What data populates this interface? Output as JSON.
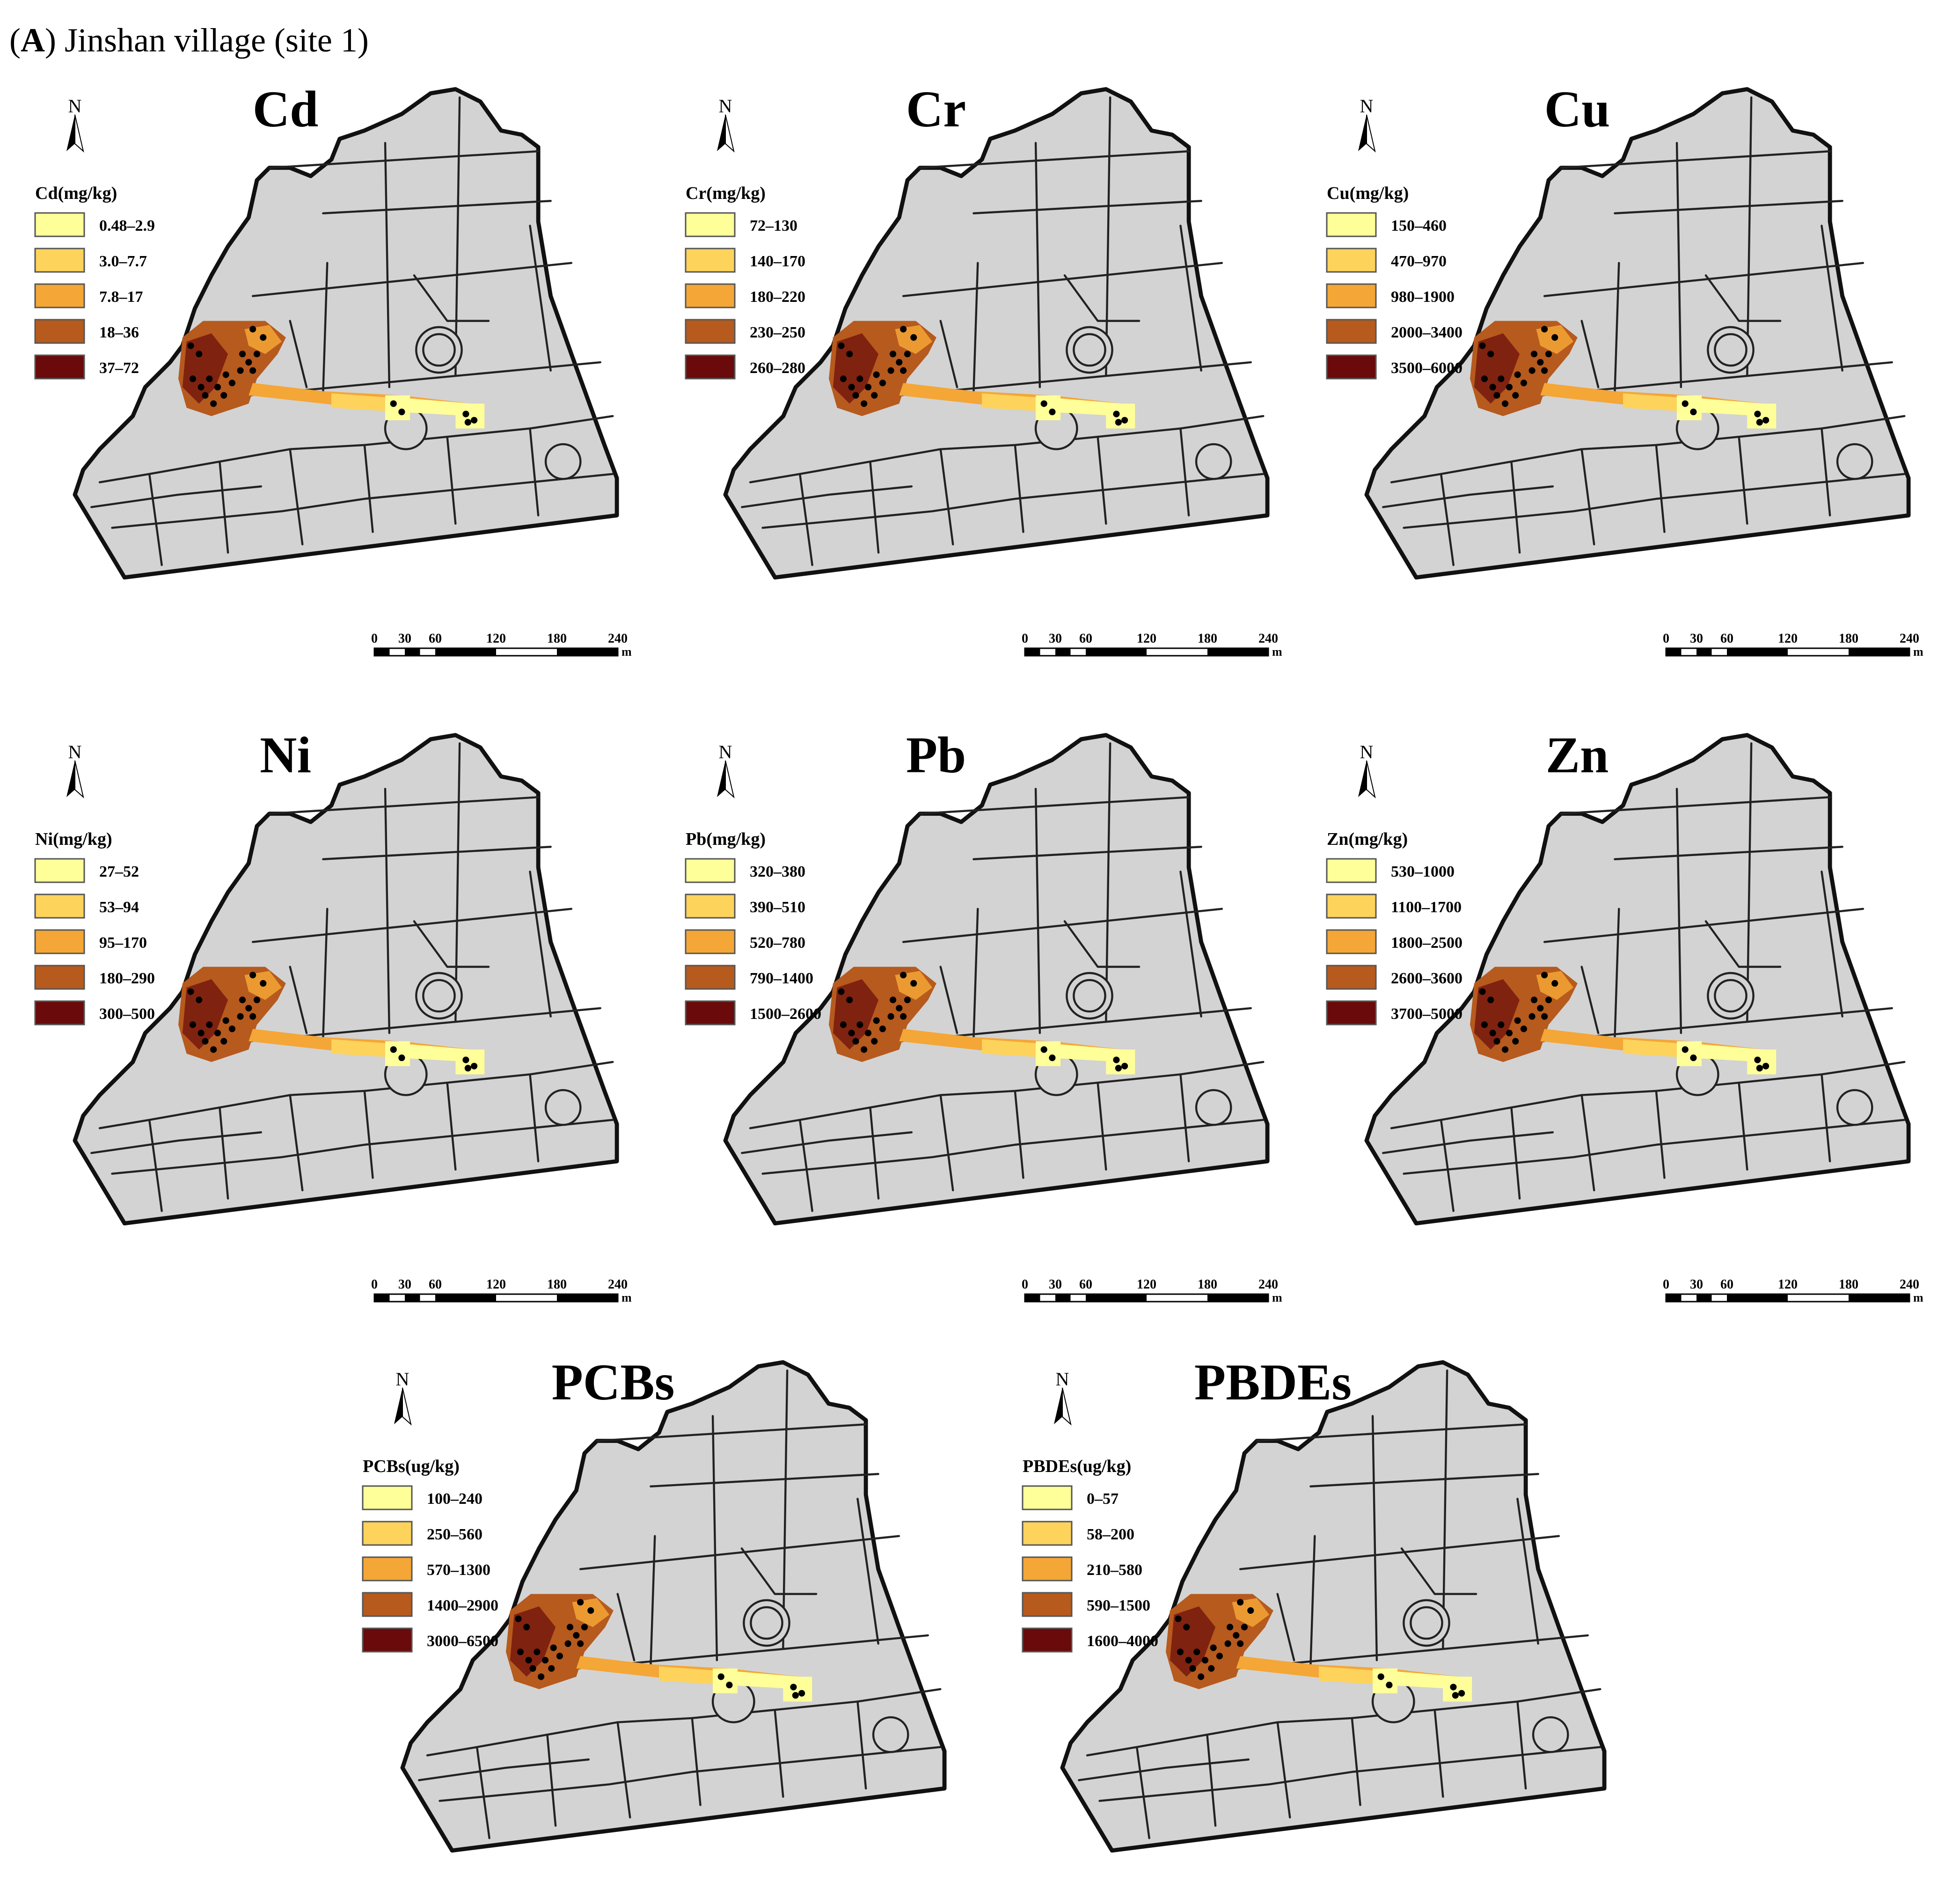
{
  "figure": {
    "label_letter": "A",
    "label_open": "(",
    "label_close": ")",
    "label_rest": " Jinshan village (site 1)"
  },
  "colors": {
    "class1": "#FFFF99",
    "class2": "#FDD35C",
    "class3": "#F4A636",
    "class4": "#B65A1E",
    "class5": "#6A0A0A",
    "land": "#D3D3D3",
    "road": "#222222"
  },
  "common": {
    "north_label": "N",
    "scale_ticks": [
      "0",
      "30",
      "60",
      "120",
      "180",
      "240"
    ],
    "scale_unit": "m"
  },
  "panels": [
    {
      "id": "cd",
      "title": "Cd",
      "legend_title": "Cd(mg/kg)",
      "classes": [
        "0.48–2.9",
        "3.0–7.7",
        "7.8–17",
        "18–36",
        "37–72"
      ]
    },
    {
      "id": "cr",
      "title": "Cr",
      "legend_title": "Cr(mg/kg)",
      "classes": [
        "72–130",
        "140–170",
        "180–220",
        "230–250",
        "260–280"
      ]
    },
    {
      "id": "cu",
      "title": "Cu",
      "legend_title": "Cu(mg/kg)",
      "classes": [
        "150–460",
        "470–970",
        "980–1900",
        "2000–3400",
        "3500–6000"
      ]
    },
    {
      "id": "ni",
      "title": "Ni",
      "legend_title": "Ni(mg/kg)",
      "classes": [
        "27–52",
        "53–94",
        "95–170",
        "180–290",
        "300–500"
      ]
    },
    {
      "id": "pb",
      "title": "Pb",
      "legend_title": "Pb(mg/kg)",
      "classes": [
        "320–380",
        "390–510",
        "520–780",
        "790–1400",
        "1500–2600"
      ]
    },
    {
      "id": "zn",
      "title": "Zn",
      "legend_title": "Zn(mg/kg)",
      "classes": [
        "530–1000",
        "1100–1700",
        "1800–2500",
        "2600–3600",
        "3700–5000"
      ]
    },
    {
      "id": "pcbs",
      "title": "PCBs",
      "legend_title": "PCBs(ug/kg)",
      "classes": [
        "100–240",
        "250–560",
        "570–1300",
        "1400–2900",
        "3000–6500"
      ]
    },
    {
      "id": "pbdes",
      "title": "PBDEs",
      "legend_title": "PBDEs(ug/kg)",
      "classes": [
        "0–57",
        "58–200",
        "210–580",
        "590–1500",
        "1600–4000"
      ]
    }
  ]
}
